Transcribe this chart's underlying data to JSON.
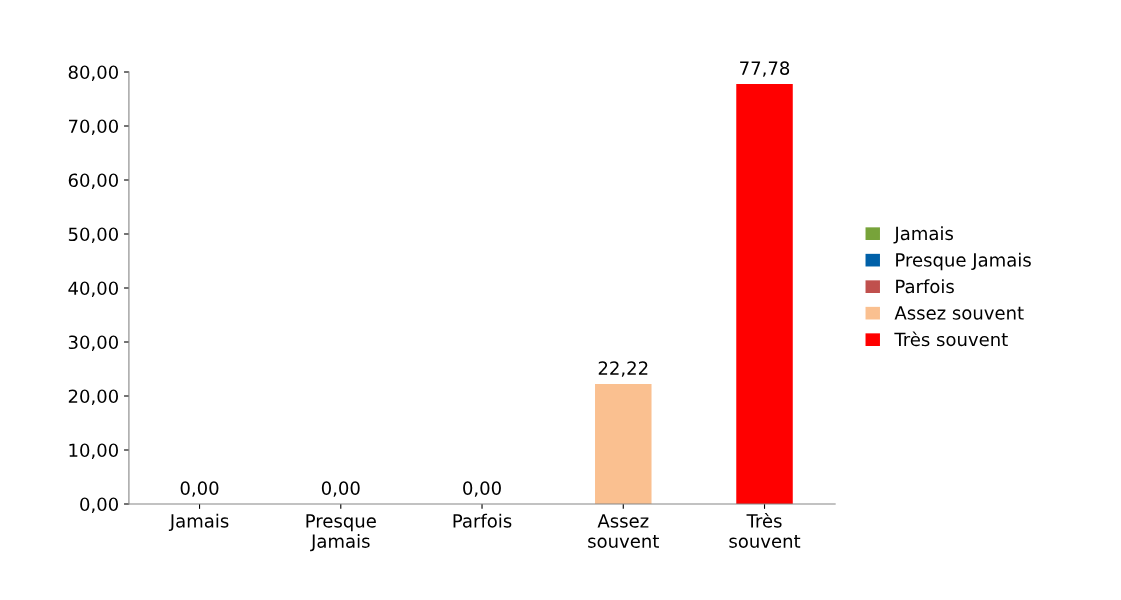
{
  "chart_data": {
    "type": "bar",
    "categories": [
      "Jamais",
      "Presque\nJamais",
      "Parfois",
      "Assez\nsouvent",
      "Très\nsouvent"
    ],
    "series": [
      {
        "name": "Jamais",
        "color": "#77a33a",
        "values": [
          0,
          null,
          null,
          null,
          null
        ],
        "value_labels": [
          "0,00",
          null,
          null,
          null,
          null
        ]
      },
      {
        "name": "Presque Jamais",
        "color": "#0060a8",
        "values": [
          null,
          0,
          null,
          null,
          null
        ],
        "value_labels": [
          null,
          "0,00",
          null,
          null,
          null
        ]
      },
      {
        "name": "Parfois",
        "color": "#c0504d",
        "values": [
          null,
          null,
          0,
          null,
          null
        ],
        "value_labels": [
          null,
          null,
          "0,00",
          null,
          null
        ]
      },
      {
        "name": "Assez souvent",
        "color": "#fac090",
        "values": [
          null,
          null,
          null,
          22.22,
          null
        ],
        "value_labels": [
          null,
          null,
          null,
          "22,22",
          null
        ]
      },
      {
        "name": "Très souvent",
        "color": "#ff0000",
        "values": [
          null,
          null,
          null,
          null,
          77.78
        ],
        "value_labels": [
          null,
          null,
          null,
          null,
          "77,78"
        ]
      }
    ],
    "ylim": [
      0,
      80
    ],
    "yticks": [
      {
        "value": 0,
        "label": "0,00"
      },
      {
        "value": 10,
        "label": "10,00"
      },
      {
        "value": 20,
        "label": "20,00"
      },
      {
        "value": 30,
        "label": "30,00"
      },
      {
        "value": 40,
        "label": "40,00"
      },
      {
        "value": 50,
        "label": "50,00"
      },
      {
        "value": 60,
        "label": "60,00"
      },
      {
        "value": 70,
        "label": "70,00"
      },
      {
        "value": 80,
        "label": "80,00"
      }
    ],
    "grid": false,
    "legend": "right"
  }
}
